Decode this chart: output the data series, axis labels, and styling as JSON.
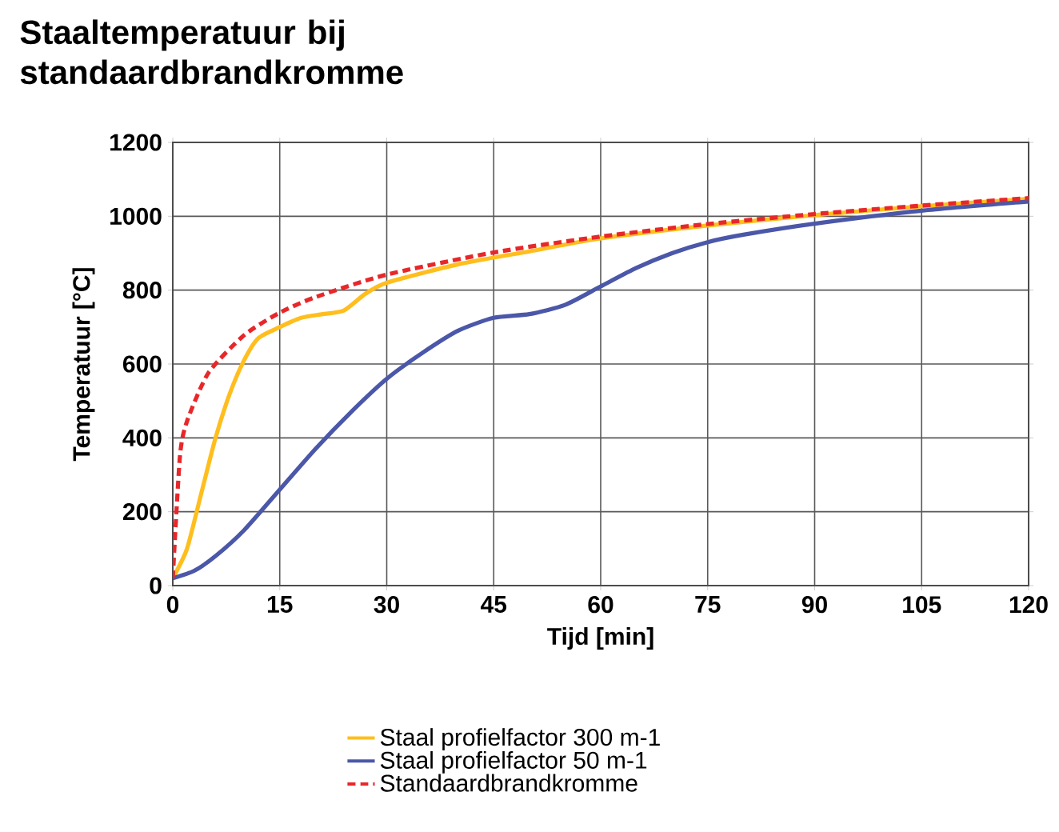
{
  "chart_data": {
    "type": "line",
    "title": "Staaltemperatuur bij standaardbrandkromme",
    "xlabel": "Tijd [min]",
    "ylabel": "Temperatuur [°C]",
    "xlim": [
      0,
      120
    ],
    "xticks": [
      0,
      15,
      30,
      45,
      60,
      75,
      90,
      105,
      120
    ],
    "ylim": [
      0,
      1200
    ],
    "yticks": [
      0,
      200,
      400,
      600,
      800,
      1000,
      1200
    ],
    "grid": true,
    "legend": "bottom",
    "series": [
      {
        "name": "Staal profielfactor 300 m-1",
        "color": "#ffbe1e",
        "line_style": "solid",
        "x": [
          0,
          2,
          4,
          6,
          8,
          10,
          12,
          15,
          18,
          21,
          24,
          27,
          30,
          40,
          50,
          60,
          75,
          90,
          105,
          120
        ],
        "values": [
          20,
          100,
          250,
          400,
          520,
          610,
          670,
          700,
          725,
          735,
          745,
          790,
          820,
          870,
          905,
          940,
          975,
          1003,
          1027,
          1047
        ]
      },
      {
        "name": "Staal profielfactor 50 m-1",
        "color": "#4b57a8",
        "line_style": "solid",
        "x": [
          0,
          3,
          6,
          10,
          15,
          20,
          25,
          30,
          35,
          40,
          45,
          50,
          55,
          60,
          65,
          70,
          75,
          80,
          90,
          105,
          120
        ],
        "values": [
          20,
          40,
          80,
          150,
          260,
          370,
          470,
          560,
          630,
          690,
          725,
          735,
          760,
          810,
          860,
          900,
          930,
          950,
          980,
          1015,
          1040
        ]
      },
      {
        "name": "Standaardbrandkromme",
        "color": "#e8272a",
        "line_style": "dashed",
        "x": [
          0,
          1,
          2,
          5,
          10,
          15,
          20,
          30,
          45,
          60,
          75,
          90,
          105,
          120
        ],
        "values": [
          20,
          349,
          445,
          576,
          678,
          739,
          781,
          842,
          902,
          945,
          979,
          1006,
          1029,
          1049
        ]
      }
    ]
  }
}
